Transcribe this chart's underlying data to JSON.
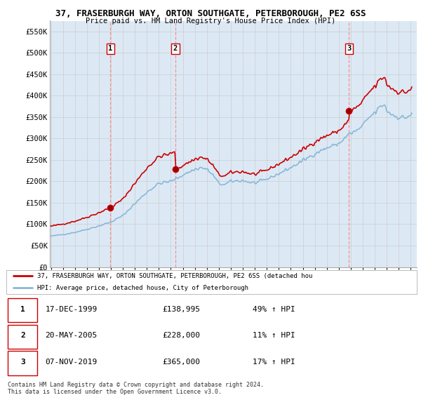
{
  "title": "37, FRASERBURGH WAY, ORTON SOUTHGATE, PETERBOROUGH, PE2 6SS",
  "subtitle": "Price paid vs. HM Land Registry's House Price Index (HPI)",
  "ylim": [
    0,
    575000
  ],
  "yticks": [
    0,
    50000,
    100000,
    150000,
    200000,
    250000,
    300000,
    350000,
    400000,
    450000,
    500000,
    550000
  ],
  "ytick_labels": [
    "£0",
    "£50K",
    "£100K",
    "£150K",
    "£200K",
    "£250K",
    "£300K",
    "£350K",
    "£400K",
    "£450K",
    "£500K",
    "£550K"
  ],
  "xlim_start": 1994.9,
  "xlim_end": 2025.5,
  "sale_dates_num": [
    1999.96,
    2005.38,
    2019.85
  ],
  "sale_prices": [
    138995,
    228000,
    365000
  ],
  "sale_labels": [
    "1",
    "2",
    "3"
  ],
  "red_line_color": "#cc0000",
  "blue_line_color": "#8ab8d8",
  "grid_color": "#cccccc",
  "plot_bg_color": "#dce9f5",
  "vline_color": "#ff8888",
  "legend_line1": "37, FRASERBURGH WAY, ORTON SOUTHGATE, PETERBOROUGH, PE2 6SS (detached hou",
  "legend_line2": "HPI: Average price, detached house, City of Peterborough",
  "table_rows": [
    [
      "1",
      "17-DEC-1999",
      "£138,995",
      "49% ↑ HPI"
    ],
    [
      "2",
      "20-MAY-2005",
      "£228,000",
      "11% ↑ HPI"
    ],
    [
      "3",
      "07-NOV-2019",
      "£365,000",
      "17% ↑ HPI"
    ]
  ],
  "footnote": "Contains HM Land Registry data © Crown copyright and database right 2024.\nThis data is licensed under the Open Government Licence v3.0."
}
